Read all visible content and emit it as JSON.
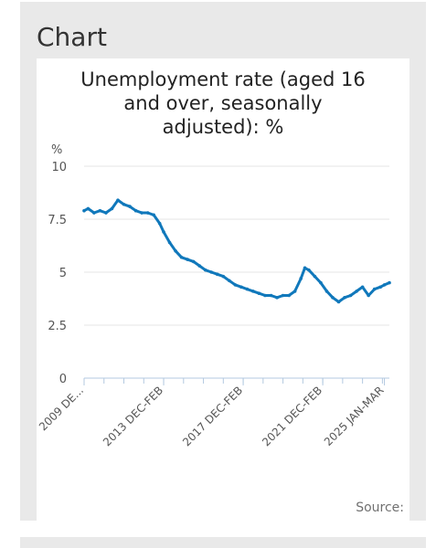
{
  "section": {
    "heading": "Chart"
  },
  "source_label": "Source:",
  "colors": {
    "line": "#1078bb",
    "grid": "#e4e4e4",
    "axis": "#b3c9e0",
    "panel": "#e9e9e9"
  },
  "chart_data": {
    "type": "line",
    "title": "Unemployment rate (aged 16\nand over, seasonally\nadjusted): %",
    "ylabel": "%",
    "ylim": [
      0,
      10
    ],
    "yticks": [
      0,
      2.5,
      5,
      7.5,
      10
    ],
    "ytick_labels": [
      "0",
      "2.5",
      "5",
      "7.5",
      "10"
    ],
    "xtick_labels": [
      "2009 DE...",
      "2013 DEC-FEB",
      "2017 DEC-FEB",
      "2021 DEC-FEB",
      "2025 JAN-MAR"
    ],
    "xtick_positions": [
      2009.9,
      2013.9,
      2017.9,
      2021.9,
      2025.0
    ],
    "xlim": [
      2009.9,
      2025.25
    ],
    "grid": true,
    "series": [
      {
        "x": [
          2009.9,
          2010.1,
          2010.4,
          2010.7,
          2011.0,
          2011.3,
          2011.6,
          2011.9,
          2012.2,
          2012.5,
          2012.8,
          2013.1,
          2013.4,
          2013.7,
          2013.9,
          2014.2,
          2014.5,
          2014.8,
          2015.1,
          2015.4,
          2015.7,
          2016.0,
          2016.3,
          2016.6,
          2016.9,
          2017.2,
          2017.5,
          2017.8,
          2018.1,
          2018.4,
          2018.7,
          2019.0,
          2019.3,
          2019.6,
          2019.9,
          2020.2,
          2020.5,
          2020.8,
          2021.0,
          2021.2,
          2021.5,
          2021.8,
          2022.1,
          2022.4,
          2022.7,
          2023.0,
          2023.3,
          2023.6,
          2023.9,
          2024.2,
          2024.5,
          2024.8,
          2025.0,
          2025.25
        ],
        "y": [
          7.9,
          8.0,
          7.8,
          7.9,
          7.8,
          8.0,
          8.4,
          8.2,
          8.1,
          7.9,
          7.8,
          7.8,
          7.7,
          7.3,
          6.9,
          6.4,
          6.0,
          5.7,
          5.6,
          5.5,
          5.3,
          5.1,
          5.0,
          4.9,
          4.8,
          4.6,
          4.4,
          4.3,
          4.2,
          4.1,
          4.0,
          3.9,
          3.9,
          3.8,
          3.9,
          3.9,
          4.1,
          4.7,
          5.2,
          5.1,
          4.8,
          4.5,
          4.1,
          3.8,
          3.6,
          3.8,
          3.9,
          4.1,
          4.3,
          3.9,
          4.2,
          4.3,
          4.4,
          4.5
        ]
      }
    ]
  }
}
